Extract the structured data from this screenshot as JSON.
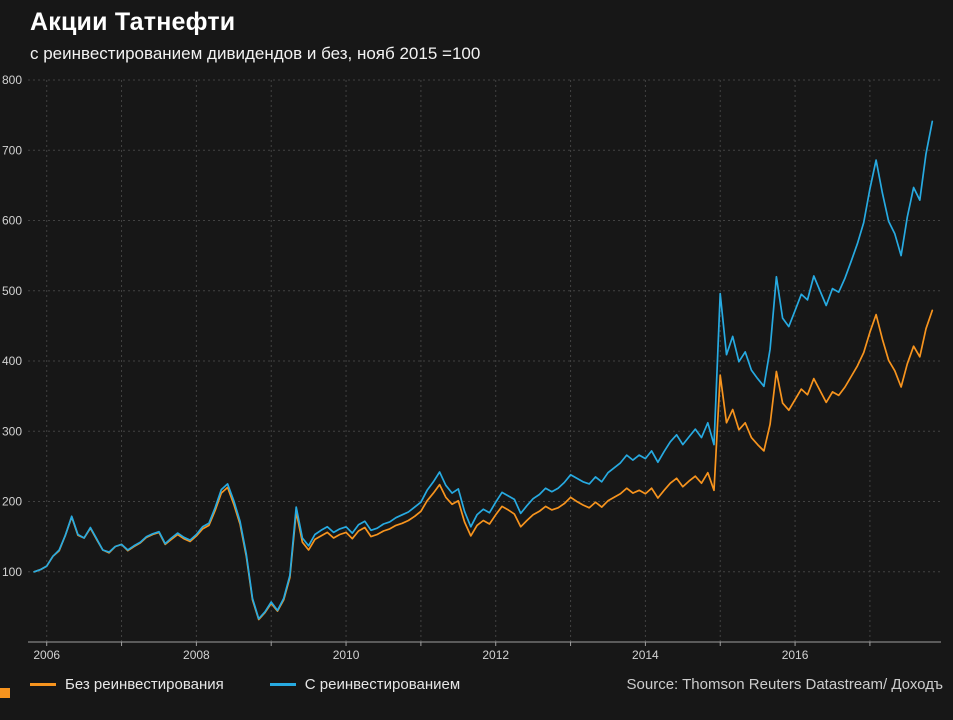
{
  "header": {
    "title": "Акции Татнефти",
    "subtitle": "с реинвестированием дивидендов и без, нояб 2015 =100"
  },
  "footer": {
    "source": "Source: Thomson Reuters Datastream/ Доходъ"
  },
  "legend": {
    "items": [
      {
        "label": "Без реинвестирования",
        "color": "#f7941e"
      },
      {
        "label": "С реинвестированием",
        "color": "#27aae1"
      }
    ]
  },
  "colors": {
    "background": "#171717",
    "title_text": "#ffffff",
    "tick_text": "#d2d2d2",
    "gridline": "#424242",
    "axis_line": "#9f9f9f",
    "orange": "#f7941e",
    "blue": "#27aae1"
  },
  "chart_data": {
    "type": "line",
    "title": "Акции Татнефти",
    "subtitle": "с реинвестированием дивидендов и без, нояб 2015 =100",
    "xlabel": "",
    "ylabel": "",
    "grid": true,
    "legend_position": "bottom",
    "xlim": [
      2005.75,
      2017.95
    ],
    "ylim": [
      0,
      800
    ],
    "y_ticks": [
      100,
      200,
      300,
      400,
      500,
      600,
      700,
      800
    ],
    "x_gridline_years": [
      2006,
      2007,
      2008,
      2009,
      2010,
      2011,
      2012,
      2013,
      2014,
      2015,
      2016,
      2017
    ],
    "x_tick_years": [
      2006,
      2008,
      2010,
      2012,
      2014,
      2016
    ],
    "x_start": 2005.8333,
    "x_step": 0.0833333,
    "x_unit": "year (monthly points, Nov 2005 – Nov 2017)",
    "series": [
      {
        "name": "Без реинвестирования",
        "color": "#f7941e",
        "values": [
          100,
          103,
          108,
          122,
          130,
          152,
          178,
          152,
          148,
          162,
          146,
          131,
          127,
          136,
          139,
          130,
          136,
          141,
          149,
          153,
          156,
          139,
          146,
          153,
          147,
          143,
          151,
          161,
          166,
          187,
          212,
          220,
          196,
          168,
          122,
          60,
          32,
          42,
          55,
          44,
          60,
          92,
          185,
          142,
          131,
          146,
          151,
          156,
          148,
          153,
          156,
          147,
          158,
          163,
          150,
          153,
          158,
          161,
          166,
          169,
          173,
          179,
          186,
          201,
          212,
          224,
          206,
          196,
          201,
          171,
          151,
          166,
          173,
          168,
          181,
          193,
          188,
          182,
          164,
          173,
          181,
          186,
          193,
          188,
          191,
          197,
          206,
          200,
          195,
          191,
          199,
          192,
          201,
          206,
          211,
          219,
          212,
          216,
          211,
          219,
          205,
          216,
          226,
          233,
          221,
          229,
          236,
          226,
          241,
          216,
          380,
          312,
          331,
          302,
          312,
          291,
          281,
          272,
          310,
          385,
          340,
          330,
          345,
          360,
          352,
          375,
          358,
          341,
          356,
          351,
          363,
          378,
          393,
          412,
          441,
          466,
          431,
          401,
          386,
          363,
          396,
          421,
          406,
          446,
          472
        ]
      },
      {
        "name": "С реинвестированием",
        "color": "#27aae1",
        "values": [
          100,
          103,
          108,
          122,
          131,
          152,
          179,
          153,
          148,
          163,
          147,
          131,
          128,
          136,
          139,
          131,
          137,
          142,
          150,
          154,
          157,
          140,
          148,
          155,
          149,
          145,
          153,
          164,
          169,
          191,
          217,
          225,
          201,
          172,
          125,
          62,
          33,
          43,
          57,
          45,
          62,
          95,
          192,
          148,
          137,
          153,
          159,
          164,
          156,
          161,
          164,
          155,
          167,
          172,
          159,
          162,
          168,
          171,
          177,
          181,
          185,
          192,
          199,
          216,
          228,
          242,
          223,
          212,
          218,
          186,
          164,
          181,
          189,
          184,
          199,
          213,
          208,
          203,
          183,
          194,
          204,
          210,
          219,
          214,
          219,
          227,
          238,
          233,
          228,
          225,
          235,
          228,
          241,
          248,
          255,
          266,
          259,
          266,
          261,
          272,
          256,
          271,
          285,
          295,
          281,
          292,
          303,
          291,
          312,
          281,
          496,
          409,
          435,
          399,
          413,
          387,
          375,
          364,
          417,
          520,
          461,
          449,
          472,
          495,
          487,
          521,
          500,
          479,
          503,
          498,
          518,
          542,
          567,
          597,
          645,
          686,
          639,
          599,
          581,
          550,
          605,
          647,
          629,
          695,
          741
        ]
      }
    ]
  }
}
